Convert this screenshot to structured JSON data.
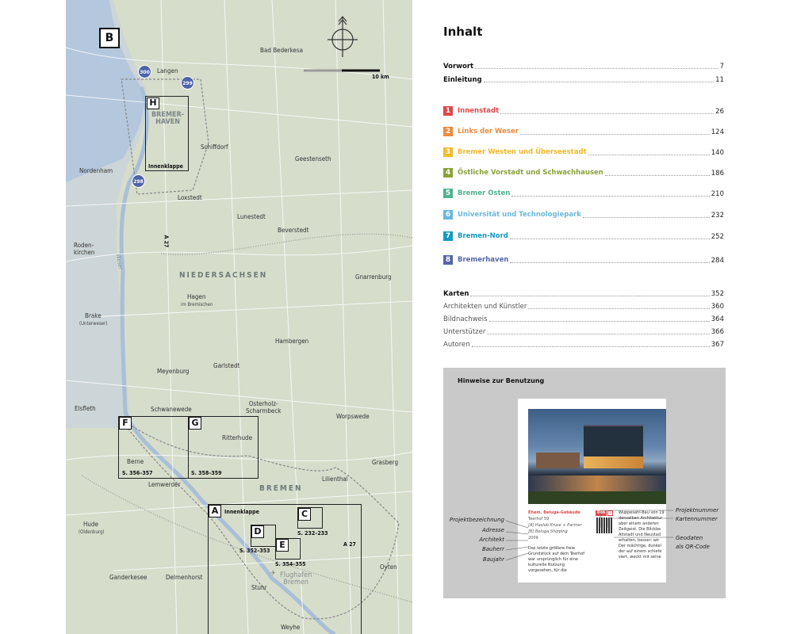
{
  "map": {
    "key_letter": "B",
    "scale_label": "10 km",
    "places": {
      "bad_bederkesa": "Bad Bederkesa",
      "langen": "Langen",
      "bremerhaven": "BREMER-\nHAVEN",
      "schiffdorf": "Schiffdorf",
      "geestenseth": "Geestenseth",
      "nordenham": "Nordenham",
      "loxstedt": "Loxstedt",
      "lunestedt": "Lunestedt",
      "a27_north": "A 27",
      "beverstedt": "Beverstedt",
      "rodenkirchen": "Roden-\nkirchen",
      "weser": "Weser",
      "niedersachsen": "NIEDERSACHSEN",
      "gnarrenburg": "Gnarrenburg",
      "brake": "Brake",
      "brake_sub": "(Unterweser)",
      "hagen": "Hagen",
      "hagen_sub": "im Bremischen",
      "hambergen": "Hambergen",
      "garlstedt": "Garlstedt",
      "meyenburg": "Meyenburg",
      "osterholz": "Osterholz-\nScharmbeck",
      "elsfleth": "Elsfleth",
      "schwanewede": "Schwanewede",
      "worpswede": "Worpswede",
      "ritterhude": "Ritterhude",
      "berne": "Berne",
      "grasberg": "Grasberg",
      "lemwerder": "Lemwerder",
      "bremen": "BREMEN",
      "lilienthal": "Lilienthal",
      "hude": "Hude",
      "hude_sub": "(Oldenburg)",
      "a27_south": "A 27",
      "oyten": "Oyten",
      "ganderkesee": "Ganderkesee",
      "delmenhorst": "Delmenhorst",
      "stuhr": "Stuhr",
      "flughafen": "Flughafen\nBremen",
      "weyhe": "Weyhe"
    },
    "pins": [
      "300",
      "299",
      "298"
    ],
    "boxes": {
      "H": {
        "key": "H",
        "caption": "Innenklappe"
      },
      "F": {
        "key": "F",
        "caption": "S. 356–357"
      },
      "G": {
        "key": "G",
        "caption": "S. 358–359"
      },
      "A": {
        "key": "A",
        "caption": "Innenklappe"
      },
      "C": {
        "key": "C",
        "caption": "S. 232–233"
      },
      "D": {
        "key": "D",
        "caption": "S. 352–353"
      },
      "E": {
        "key": "E",
        "caption": "S. 354–355"
      }
    }
  },
  "toc": {
    "title": "Inhalt",
    "front": [
      {
        "label": "Vorwort",
        "page": "7"
      },
      {
        "label": "Einleitung",
        "page": "11"
      }
    ],
    "chapters": [
      {
        "num": "1",
        "label": "Innenstadt",
        "page": "26",
        "color": "#e0484a"
      },
      {
        "num": "2",
        "label": "Links der Weser",
        "page": "124",
        "color": "#ef8a3c"
      },
      {
        "num": "3",
        "label": "Bremer Westen und Überseestadt",
        "page": "140",
        "color": "#f2b92a"
      },
      {
        "num": "4",
        "label": "Östliche Vorstadt und Schwachhausen",
        "page": "186",
        "color": "#8aa23a"
      },
      {
        "num": "5",
        "label": "Bremer Osten",
        "page": "210",
        "color": "#4fb38e"
      },
      {
        "num": "6",
        "label": "Universität und Technologiepark",
        "page": "232",
        "color": "#6ab8dc"
      },
      {
        "num": "7",
        "label": "Bremen-Nord",
        "page": "252",
        "color": "#149ac0"
      },
      {
        "num": "8",
        "label": "Bremerhaven",
        "page": "284",
        "color": "#5566a8"
      }
    ],
    "back": [
      {
        "label": "Karten",
        "page": "352"
      },
      {
        "label": "Architekten und Künstler",
        "page": "360"
      },
      {
        "label": "Bildnachweis",
        "page": "364"
      },
      {
        "label": "Unterstützer",
        "page": "366"
      },
      {
        "label": "Autoren",
        "page": "367"
      }
    ]
  },
  "hint": {
    "title": "Hinweise zur Benutzung",
    "left_annotations": [
      "Projektbezeichnung",
      "Adresse",
      "Architekt",
      "Bauherr",
      "Baujahr"
    ],
    "right_annotations": [
      "Projektnummer",
      "Kartennummer",
      "Geodaten\nals QR-Code"
    ],
    "sample": {
      "name": "Ehem. Beluga-Gebäude",
      "address": "Teerhof 59",
      "architect": "[A] Haslob Kruse + Partner",
      "client": "[B] Beluga Shipping",
      "year": "2009",
      "project_number": "086",
      "map_number": "1",
      "body_left": "Das letzte größere freie Grundstück auf dem Teerhof war ursprünglich für eine kulturelle Nutzung vorgesehen, für die",
      "body_right": "Wuppesahl-Bau von 19 denselben Architektur aber einem anderen Zeitgeist. Die Blickbe Altstadt und Neustad erhalten, besser: wir Der mächtige, dunkel der auf einem schiefe siert, weckt mit seine"
    }
  }
}
